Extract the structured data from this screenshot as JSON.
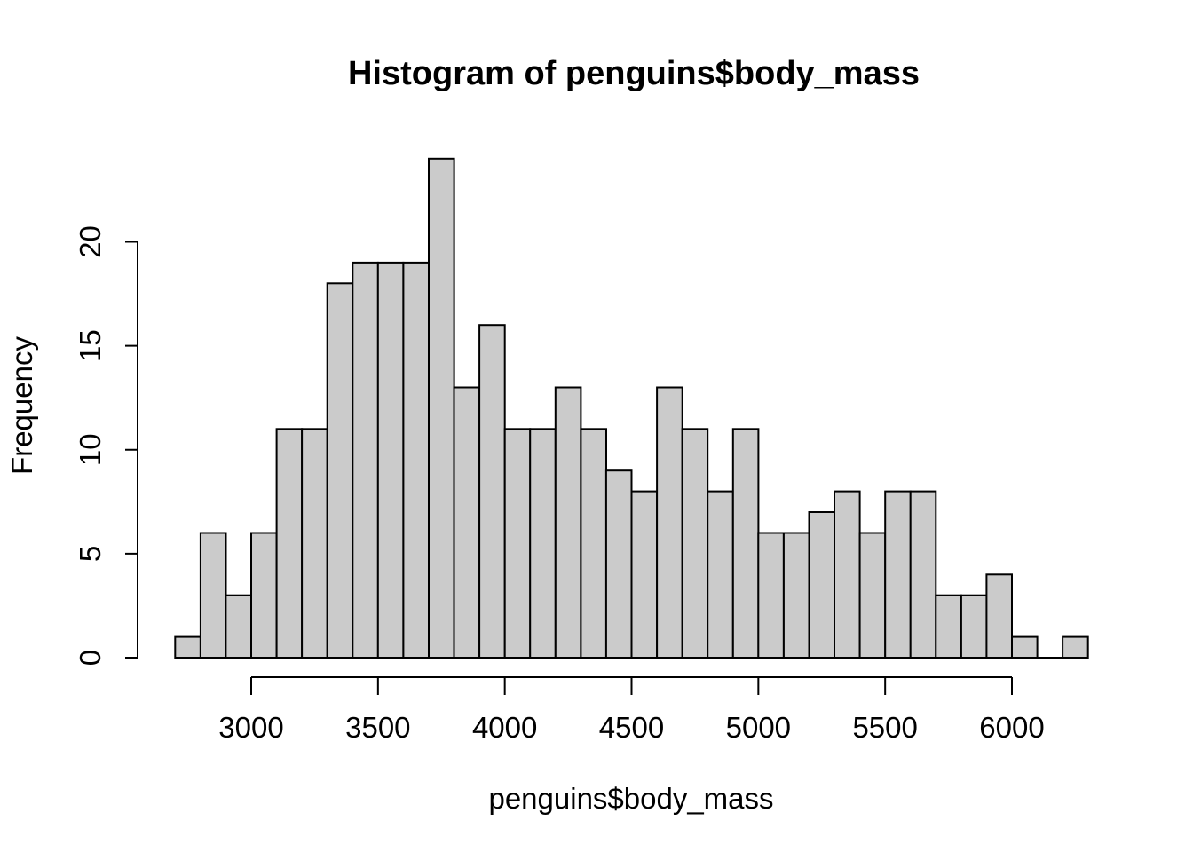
{
  "figure": {
    "title": "Histogram of penguins$body_mass"
  },
  "chart_data": {
    "type": "bar",
    "subtype": "histogram",
    "title": "Histogram of penguins$body_mass",
    "xlabel": "penguins$body_mass",
    "ylabel": "Frequency",
    "bin_start": 2700,
    "bin_width": 100,
    "bin_end": 6300,
    "counts": [
      1,
      6,
      3,
      6,
      11,
      11,
      18,
      19,
      19,
      19,
      24,
      13,
      16,
      11,
      11,
      13,
      11,
      9,
      8,
      13,
      11,
      8,
      11,
      6,
      6,
      7,
      8,
      6,
      8,
      8,
      3,
      3,
      4,
      1,
      0,
      1
    ],
    "x_ticks": [
      3000,
      3500,
      4000,
      4500,
      5000,
      5500,
      6000
    ],
    "y_ticks": [
      0,
      5,
      10,
      15,
      20
    ],
    "xlim": [
      2700,
      6300
    ],
    "ylim": [
      0,
      20
    ],
    "grid": false,
    "legend_position": "none",
    "bar_fill": "#CBCBCB",
    "bar_stroke": "#000000",
    "axis_color": "#000000",
    "background": "#FFFFFF"
  }
}
